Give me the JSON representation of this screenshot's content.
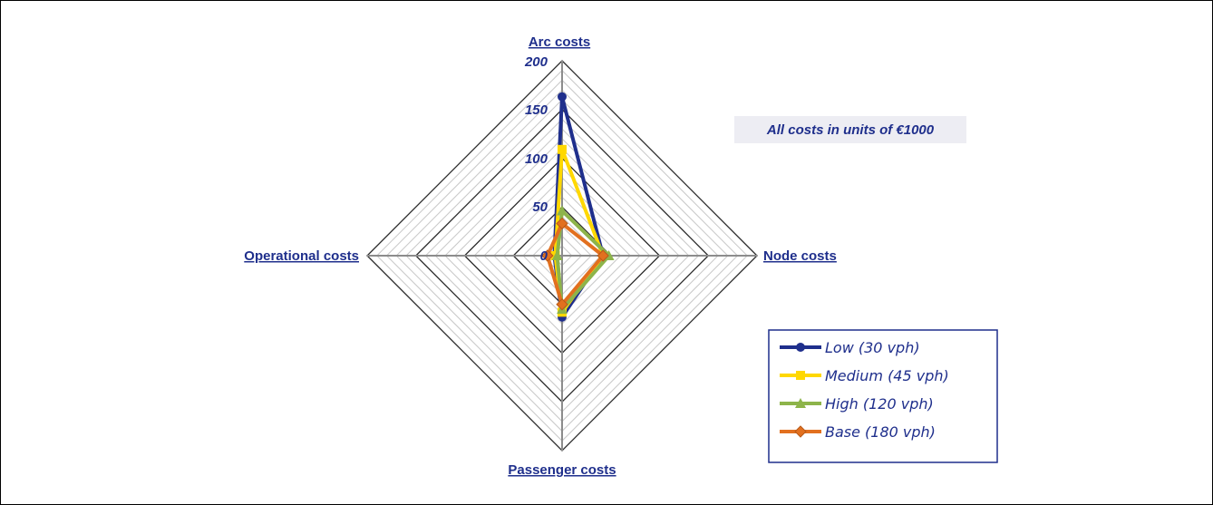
{
  "chart_data": {
    "type": "radar",
    "axes": [
      "Arc costs",
      "Node costs",
      "Passenger costs",
      "Operational costs"
    ],
    "ticks": [
      "0",
      "50",
      "100",
      "150",
      "200"
    ],
    "rmax": 200,
    "major_step": 50,
    "minor_step": 10,
    "annotation": "All costs in units of €1000",
    "series": [
      {
        "name": "Low (30 vph)",
        "values": [
          163,
          42,
          63,
          8
        ],
        "color": "#1F2F8C",
        "marker": "circle"
      },
      {
        "name": "Medium (45 vph)",
        "values": [
          109,
          42,
          58,
          7
        ],
        "color": "#FFD800",
        "marker": "square"
      },
      {
        "name": "High (120 vph)",
        "values": [
          46,
          48,
          55,
          5
        ],
        "color": "#8DB44A",
        "marker": "triangle"
      },
      {
        "name": "Base (180 vph)",
        "values": [
          33,
          42,
          50,
          15
        ],
        "color": "#E2701F",
        "marker": "diamond"
      }
    ],
    "legend_position": "bottom-right",
    "grid": true
  }
}
